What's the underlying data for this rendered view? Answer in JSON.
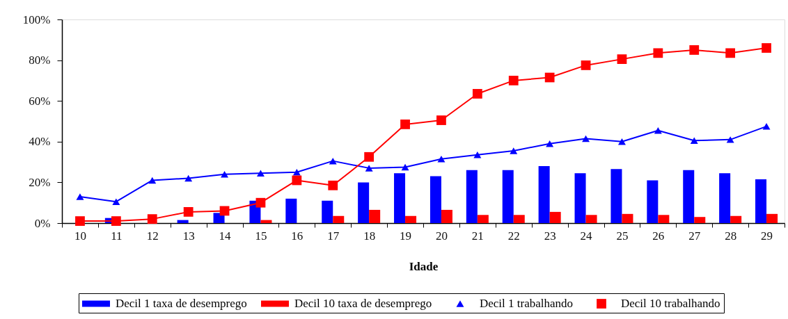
{
  "chart_data": {
    "type": "bar",
    "xlabel": "Idade",
    "categories": [
      "10",
      "11",
      "12",
      "13",
      "14",
      "15",
      "16",
      "17",
      "18",
      "19",
      "20",
      "21",
      "22",
      "23",
      "24",
      "25",
      "26",
      "27",
      "28",
      "29"
    ],
    "series": [
      {
        "name": "Decil 1 taxa de desemprego",
        "color": "#0000ff",
        "values": [
          null,
          2.5,
          null,
          1.5,
          5,
          11,
          12,
          11,
          20,
          24.5,
          23,
          26,
          26,
          28,
          24.5,
          26.5,
          21,
          26,
          24.5,
          21.5
        ]
      },
      {
        "name": "Decil 10 taxa de desemprego",
        "color": "#ff0000",
        "values": [
          null,
          null,
          null,
          null,
          null,
          1.5,
          null,
          3.5,
          6.5,
          3.5,
          6.5,
          4,
          4,
          5.5,
          4,
          4.5,
          4,
          3,
          3.5,
          4.5
        ]
      },
      {
        "name": "Decil 1 trabalhando",
        "type": "line",
        "color": "#0000ff",
        "marker": "triangle",
        "values": [
          13,
          10.5,
          21,
          22,
          24,
          24.5,
          25,
          30.5,
          27,
          27.5,
          31.5,
          33.5,
          35.5,
          39,
          41.5,
          40,
          45.5,
          40.5,
          41,
          47.5
        ]
      },
      {
        "name": "Decil 10 trabalhando",
        "type": "line",
        "color": "#ff0000",
        "marker": "square",
        "values": [
          1,
          1,
          2,
          5.5,
          6,
          10,
          21,
          18.5,
          32.5,
          48.5,
          50.5,
          63.5,
          70,
          71.5,
          77.5,
          80.5,
          83.5,
          85,
          83.5,
          86
        ]
      }
    ],
    "ylim": [
      0,
      100
    ],
    "yticks": [
      {
        "value": 0,
        "label": "0%"
      },
      {
        "value": 20,
        "label": "20%"
      },
      {
        "value": 40,
        "label": "40%"
      },
      {
        "value": 60,
        "label": "60%"
      },
      {
        "value": 80,
        "label": "80%"
      },
      {
        "value": 100,
        "label": "100%"
      }
    ],
    "legend": "bottom"
  }
}
